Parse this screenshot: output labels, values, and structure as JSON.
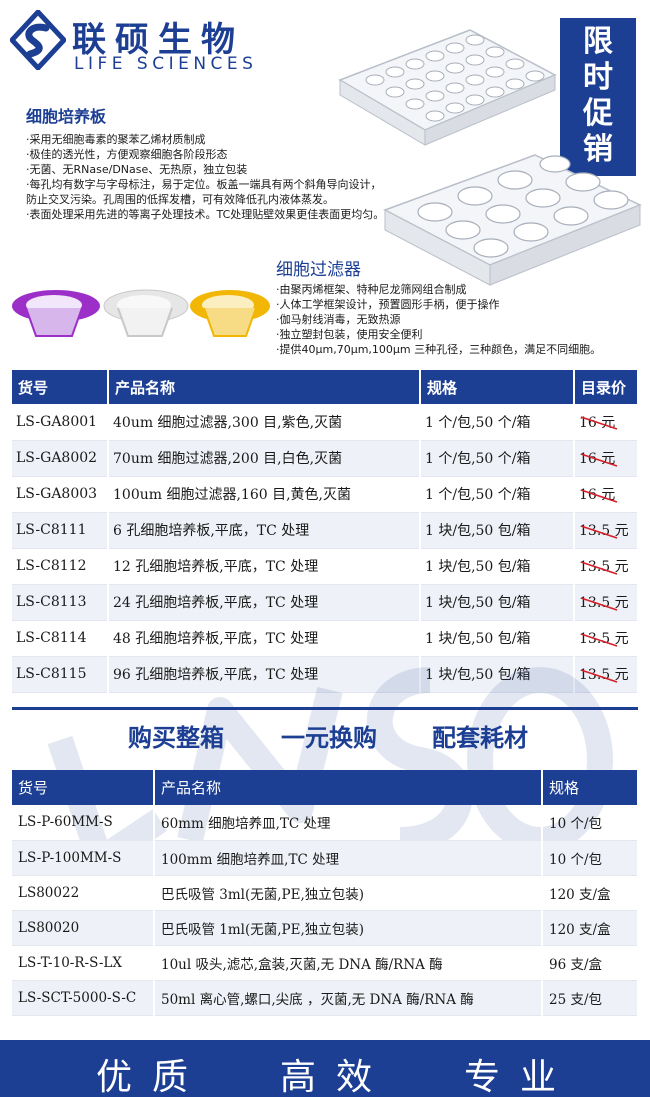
{
  "brand": {
    "name_cn": "联硕生物",
    "name_en": "LIFE SCIENCES"
  },
  "promo": {
    "chars": [
      "限",
      "时",
      "促",
      "销"
    ]
  },
  "cell_plate": {
    "title": "细胞培养板",
    "bullets": [
      "·采用无细胞毒素的聚苯乙烯材质制成",
      "·极佳的透光性，方便观察细胞各阶段形态",
      "·无菌、无RNase/DNase、无热原，独立包装",
      "·每孔均有数字与字母标注，易于定位。板盖一端具有两个斜角导向设计，",
      "防止交叉污染。孔周围的低挥发槽，可有效降低孔内液体蒸发。",
      "·表面处理采用先进的等离子处理技术。TC处理贴壁效果更佳表面更均匀。"
    ]
  },
  "cell_strainer": {
    "title": "细胞过滤器",
    "bullets": [
      "·由聚丙烯框架、特种尼龙筛网组合制成",
      "·人体工学框架设计，预置圆形手柄，便于操作",
      "·伽马射线消毒，无致热源",
      "·独立塑封包装，使用安全便利",
      "·提供40μm,70μm,100μm 三种孔径，三种颜色，满足不同细胞。"
    ]
  },
  "table1": {
    "headers": [
      "货号",
      "产品名称",
      "规格",
      "目录价"
    ],
    "rows": [
      [
        "LS-GA8001",
        "40um 细胞过滤器,300 目,紫色,灭菌",
        "1 个/包,50 个/箱",
        "16 元"
      ],
      [
        "LS-GA8002",
        "70um 细胞过滤器,200 目,白色,灭菌",
        "1 个/包,50 个/箱",
        "16 元"
      ],
      [
        "LS-GA8003",
        "100um 细胞过滤器,160 目,黄色,灭菌",
        "1 个/包,50 个/箱",
        "16 元"
      ],
      [
        "LS-C8111",
        "6 孔细胞培养板,平底，TC 处理",
        "1 块/包,50 包/箱",
        "13.5 元"
      ],
      [
        "LS-C8112",
        "12 孔细胞培养板,平底，TC 处理",
        "1 块/包,50 包/箱",
        "13.5 元"
      ],
      [
        "LS-C8113",
        "24 孔细胞培养板,平底，TC 处理",
        "1 块/包,50 包/箱",
        "13.5 元"
      ],
      [
        "LS-C8114",
        "48 孔细胞培养板,平底，TC 处理",
        "1 块/包,50 包/箱",
        "13.5 元"
      ],
      [
        "LS-C8115",
        "96 孔细胞培养板,平底，TC 处理",
        "1 块/包,50 包/箱",
        "13.5 元"
      ]
    ]
  },
  "slogans": [
    "购买整箱",
    "一元换购",
    "配套耗材"
  ],
  "table2": {
    "headers": [
      "货号",
      "产品名称",
      "规格"
    ],
    "rows": [
      [
        "LS-P-60MM-S",
        "60mm 细胞培养皿,TC 处理",
        "10 个/包"
      ],
      [
        "LS-P-100MM-S",
        "100mm 细胞培养皿,TC 处理",
        "10 个/包"
      ],
      [
        "LS80022",
        "巴氏吸管 3ml(无菌,PE,独立包装)",
        "120 支/盒"
      ],
      [
        "LS80020",
        "巴氏吸管 1ml(无菌,PE,独立包装)",
        "120 支/盒"
      ],
      [
        "LS-T-10-R-S-LX",
        "10ul 吸头,滤芯,盒装,灭菌,无 DNA 酶/RNA 酶",
        "96 支/盒"
      ],
      [
        "LS-SCT-5000-S-C",
        "50ml 离心管,螺口,尖底 ，灭菌,无 DNA 酶/RNA 酶",
        "25 支/包"
      ]
    ]
  },
  "footer": [
    "优质",
    "高效",
    "专业"
  ],
  "colors": {
    "brand_blue": "#1c3f94",
    "strainer_purple": "#9b2fc8",
    "strainer_white": "#e6e6e6",
    "strainer_yellow": "#f2b705",
    "strike_red": "#d61f26"
  }
}
